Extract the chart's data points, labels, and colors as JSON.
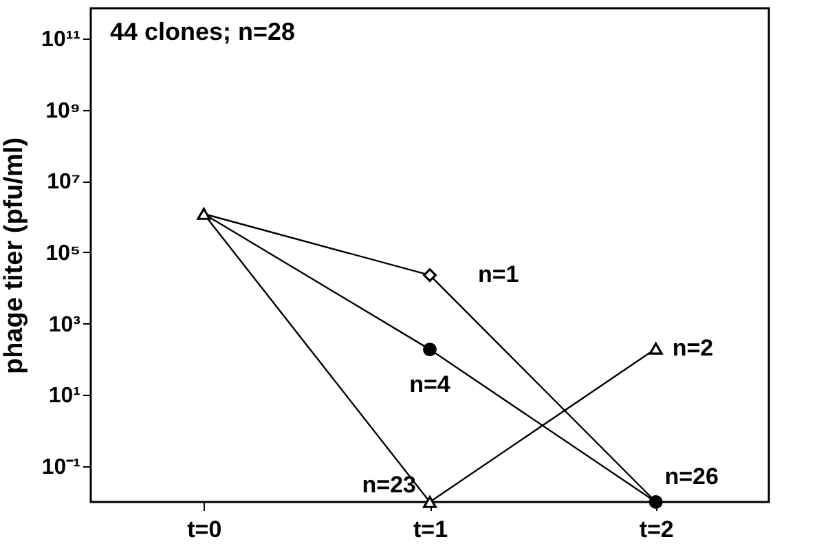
{
  "chart_data": {
    "type": "line",
    "ylabel": "phage titer (pfu/ml)",
    "categories": [
      "t=0",
      "t=1",
      "t=2"
    ],
    "log": "y",
    "ylim": [
      0.01,
      700000000000
    ],
    "yticks": [
      {
        "value": 0.1,
        "label": "10⁻¹"
      },
      {
        "value": 10,
        "label": "10¹"
      },
      {
        "value": 1000,
        "label": "10³"
      },
      {
        "value": 100000,
        "label": "10⁵"
      },
      {
        "value": 10000000,
        "label": "10⁷"
      },
      {
        "value": 1000000000,
        "label": "10⁹"
      },
      {
        "value": 100000000000,
        "label": "10¹¹"
      }
    ],
    "grid": false,
    "marker": "none",
    "line_style": "solid",
    "series": [
      {
        "color": "#000000",
        "values": [
          1200000,
          23000,
          0.01
        ]
      },
      {
        "color": "#000000",
        "values": [
          1200000,
          190,
          0.01
        ]
      },
      {
        "color": "#000000",
        "values": [
          1200000,
          0.01,
          200
        ]
      },
      {
        "type": "scatter",
        "marker": "triangle",
        "color": "#000000",
        "values": [
          1200000,
          0.01,
          200
        ]
      },
      {
        "type": "scatter",
        "marker": "diamond",
        "color": "#000000",
        "values": [
          null,
          23000,
          null
        ]
      },
      {
        "type": "scatter",
        "marker": "circle",
        "color": "#000000",
        "values": [
          null,
          190,
          0.01
        ]
      }
    ],
    "annotations": [
      "44 clones; n=28",
      {
        "text": "n=1",
        "x": "t=1",
        "y": 23000
      },
      {
        "text": "n=4",
        "x": "t=1",
        "y": 190
      },
      {
        "text": "n=23",
        "x": "t=1",
        "y": 0.01
      },
      {
        "text": "n=2",
        "x": "t=2",
        "y": 200
      },
      {
        "text": "n=26",
        "x": "t=2",
        "y": 0.01
      }
    ]
  }
}
